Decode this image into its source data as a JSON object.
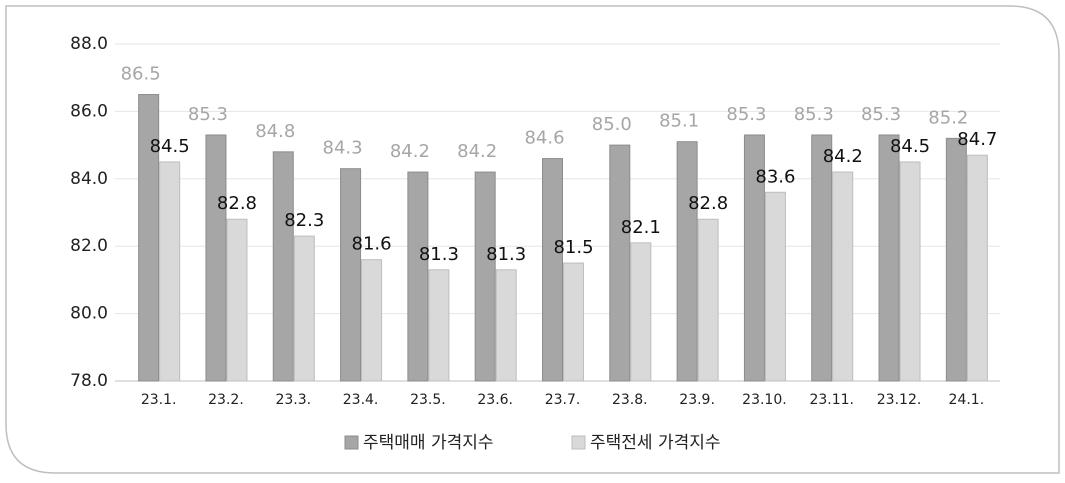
{
  "chart_data": {
    "type": "bar",
    "categories": [
      "23.1.",
      "23.2.",
      "23.3.",
      "23.4.",
      "23.5.",
      "23.6.",
      "23.7.",
      "23.8.",
      "23.9.",
      "23.10.",
      "23.11.",
      "23.12.",
      "24.1."
    ],
    "series": [
      {
        "name": "주택매매 가격지수",
        "color": "#a6a6a6",
        "values": [
          86.5,
          85.3,
          84.8,
          84.3,
          84.2,
          84.2,
          84.6,
          85.0,
          85.1,
          85.3,
          85.3,
          85.3,
          85.2
        ],
        "value_labels": [
          "86.5",
          "85.3",
          "84.8",
          "84.3",
          "84.2",
          "84.2",
          "84.6",
          "85.0",
          "85.1",
          "85.3",
          "85.3",
          "85.3",
          "85.2"
        ]
      },
      {
        "name": "주택전세 가격지수",
        "color": "#d9d9d9",
        "values": [
          84.5,
          82.8,
          82.3,
          81.6,
          81.3,
          81.3,
          81.5,
          82.1,
          82.8,
          83.6,
          84.2,
          84.5,
          84.7
        ],
        "value_labels": [
          "84.5",
          "82.8",
          "82.3",
          "81.6",
          "81.3",
          "81.3",
          "81.5",
          "82.1",
          "82.8",
          "83.6",
          "84.2",
          "84.5",
          "84.7"
        ]
      }
    ],
    "ylim": [
      78,
      88
    ],
    "yticks": [
      {
        "value": 78,
        "label": "78.0"
      },
      {
        "value": 80,
        "label": "80.0"
      },
      {
        "value": 82,
        "label": "82.0"
      },
      {
        "value": 84,
        "label": "84.0"
      },
      {
        "value": 86,
        "label": "86.0"
      },
      {
        "value": 88,
        "label": "88.0"
      }
    ],
    "grid": true,
    "legend": "bottom"
  }
}
